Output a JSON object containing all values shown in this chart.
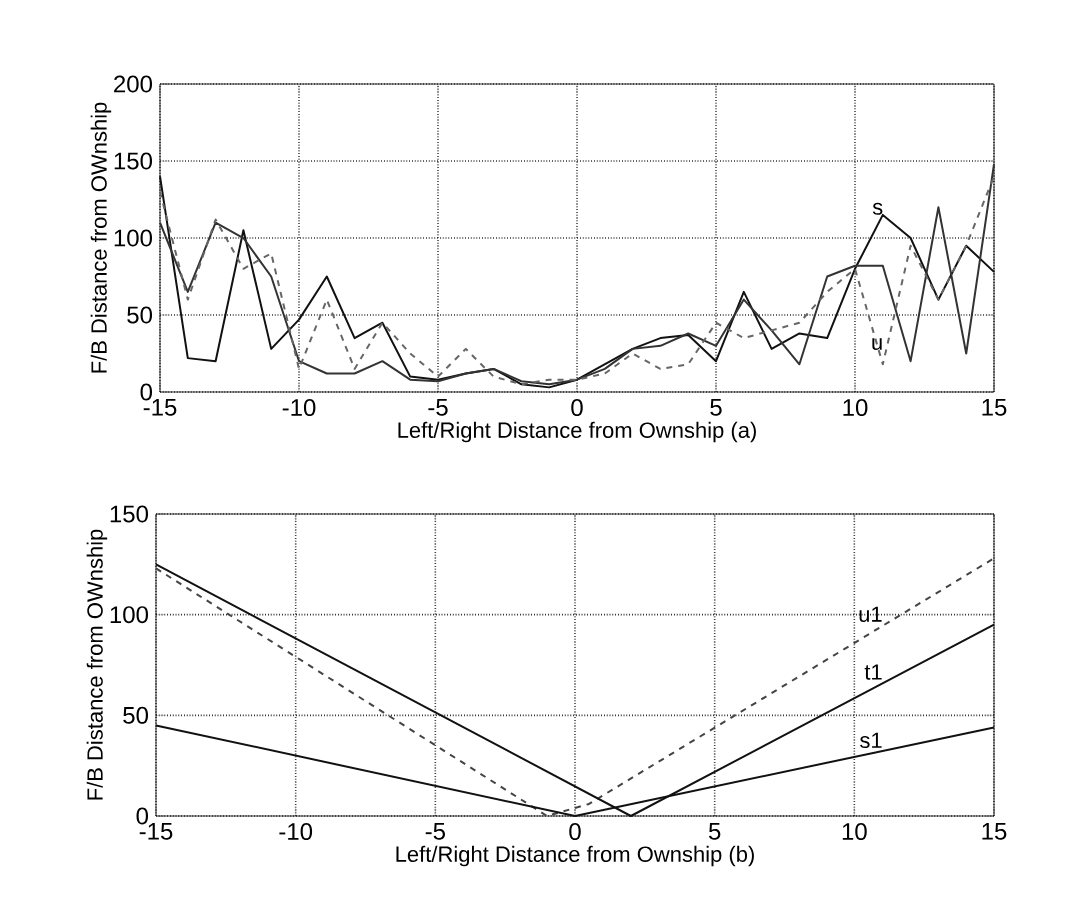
{
  "chart_data": [
    {
      "type": "line",
      "xlabel": "Left/Right Distance from Ownship (a)",
      "ylabel": "F/B Distance from OWnship",
      "x": [
        -15,
        -14,
        -13,
        -12,
        -11,
        -10,
        -9,
        -8,
        -7,
        -6,
        -5,
        -4,
        -3,
        -2,
        -1,
        0,
        1,
        2,
        3,
        4,
        5,
        6,
        7,
        8,
        9,
        10,
        11,
        12,
        13,
        14,
        15
      ],
      "series": [
        {
          "name": "s",
          "color": "#111111",
          "line_style": "solid",
          "values": [
            140,
            22,
            20,
            105,
            28,
            47,
            75,
            35,
            45,
            10,
            8,
            12,
            15,
            5,
            3,
            8,
            18,
            28,
            35,
            37,
            20,
            65,
            28,
            38,
            35,
            80,
            115,
            100,
            60,
            95,
            78
          ]
        },
        {
          "color": "#333333",
          "line_style": "solid",
          "values": [
            110,
            65,
            110,
            100,
            75,
            20,
            12,
            12,
            20,
            8,
            7,
            12,
            15,
            7,
            5,
            8,
            15,
            28,
            30,
            38,
            30,
            60,
            40,
            18,
            75,
            82,
            82,
            20,
            120,
            25,
            148
          ]
        },
        {
          "name": "u",
          "color": "#666666",
          "line_style": "dashed",
          "values": [
            130,
            60,
            112,
            80,
            90,
            15,
            60,
            15,
            45,
            25,
            10,
            28,
            10,
            5,
            8,
            8,
            12,
            25,
            15,
            18,
            45,
            35,
            40,
            45,
            65,
            80,
            18,
            95,
            60,
            95,
            140
          ]
        }
      ],
      "xlim": [
        -15,
        15
      ],
      "xticks": [
        -15,
        -10,
        -5,
        0,
        5,
        10,
        15
      ],
      "ylim": [
        0,
        200
      ],
      "yticks": [
        0,
        50,
        100,
        150,
        200
      ],
      "grid": true
    },
    {
      "type": "line",
      "xlabel": "Left/Right Distance from Ownship (b)",
      "ylabel": "F/B Distance from OWnship",
      "series": [
        {
          "name": "u1",
          "color": "#444444",
          "line_style": "dashed",
          "x": [
            -15,
            -1,
            0.5,
            15
          ],
          "values": [
            123,
            0,
            6,
            128
          ]
        },
        {
          "name": "t1",
          "color": "#111111",
          "line_style": "solid",
          "x": [
            -15,
            2,
            15
          ],
          "values": [
            125,
            0,
            95
          ]
        },
        {
          "name": "s1",
          "color": "#111111",
          "line_style": "solid",
          "x": [
            -15,
            0,
            15
          ],
          "values": [
            45,
            0,
            44
          ]
        }
      ],
      "xlim": [
        -15,
        15
      ],
      "xticks": [
        -15,
        -10,
        -5,
        0,
        5,
        10,
        15
      ],
      "ylim": [
        0,
        150
      ],
      "yticks": [
        0,
        50,
        100,
        150
      ],
      "grid": true
    }
  ]
}
